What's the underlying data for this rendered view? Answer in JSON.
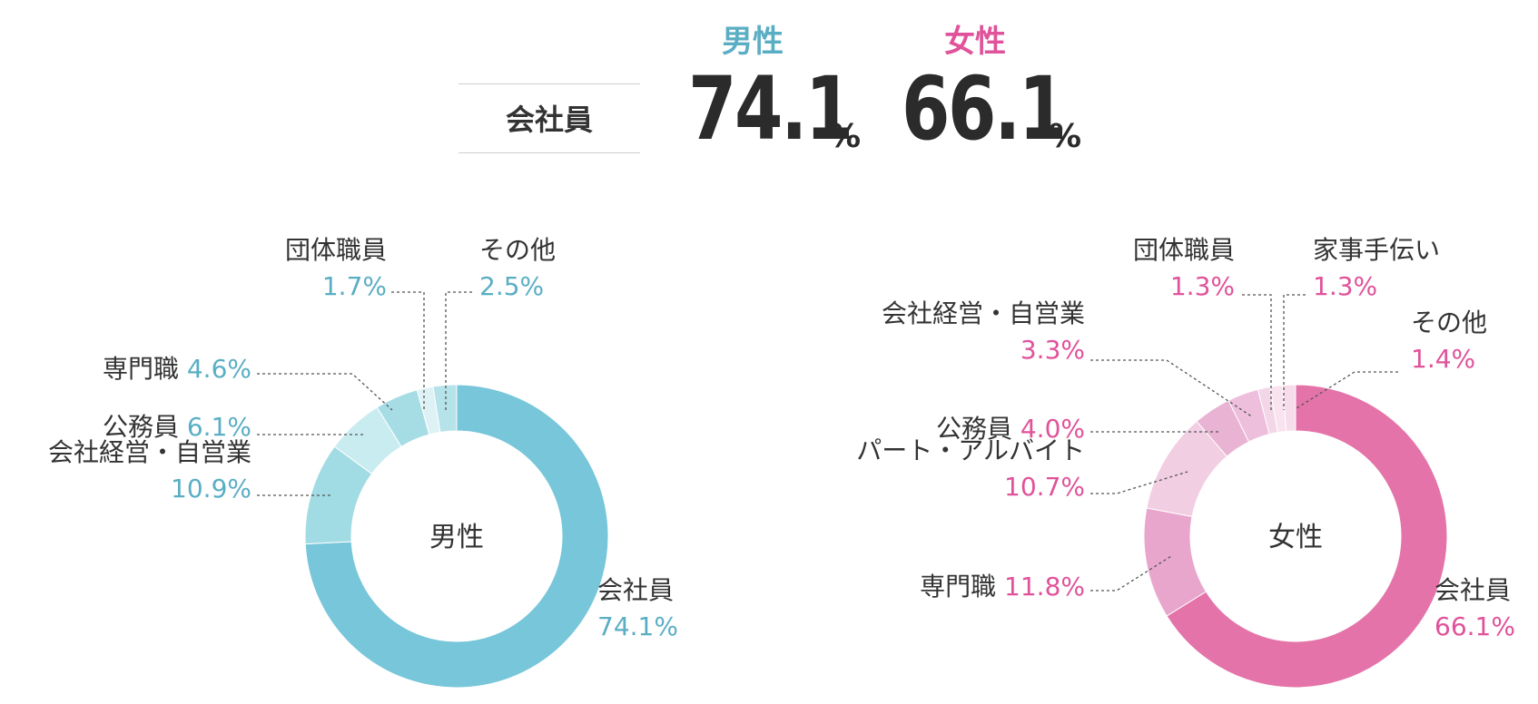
{
  "summary": {
    "category": "会社員",
    "male_label": "男性",
    "female_label": "女性",
    "male_value": "74.1",
    "female_value": "66.1",
    "unit": "%"
  },
  "colors": {
    "male_accent": "#5aaec4",
    "female_accent": "#e0529a",
    "male_palette": [
      "#77c6da",
      "#a1dbe3",
      "#c9ecf1",
      "#a6dde4",
      "#def2f6",
      "#b6e3ea"
    ],
    "female_palette": [
      "#e473a9",
      "#e8a6cd",
      "#f1cee2",
      "#e9b3d4",
      "#eebfdc",
      "#f3d6e7",
      "#f8e3ef",
      "#f7dceb"
    ]
  },
  "chart_data": [
    {
      "type": "pie",
      "center_label": "男性",
      "series": [
        {
          "name": "会社員",
          "value": 74.1
        },
        {
          "name": "会社経営・自営業",
          "value": 10.9
        },
        {
          "name": "公務員",
          "value": 6.1
        },
        {
          "name": "専門職",
          "value": 4.6
        },
        {
          "name": "団体職員",
          "value": 1.7
        },
        {
          "name": "その他",
          "value": 2.5
        }
      ]
    },
    {
      "type": "pie",
      "center_label": "女性",
      "series": [
        {
          "name": "会社員",
          "value": 66.1
        },
        {
          "name": "専門職",
          "value": 11.8
        },
        {
          "name": "パート・アルバイト",
          "value": 10.7
        },
        {
          "name": "公務員",
          "value": 4.0
        },
        {
          "name": "会社経営・自営業",
          "value": 3.3
        },
        {
          "name": "団体職員",
          "value": 1.3
        },
        {
          "name": "家事手伝い",
          "value": 1.3
        },
        {
          "name": "その他",
          "value": 1.4
        }
      ]
    }
  ]
}
